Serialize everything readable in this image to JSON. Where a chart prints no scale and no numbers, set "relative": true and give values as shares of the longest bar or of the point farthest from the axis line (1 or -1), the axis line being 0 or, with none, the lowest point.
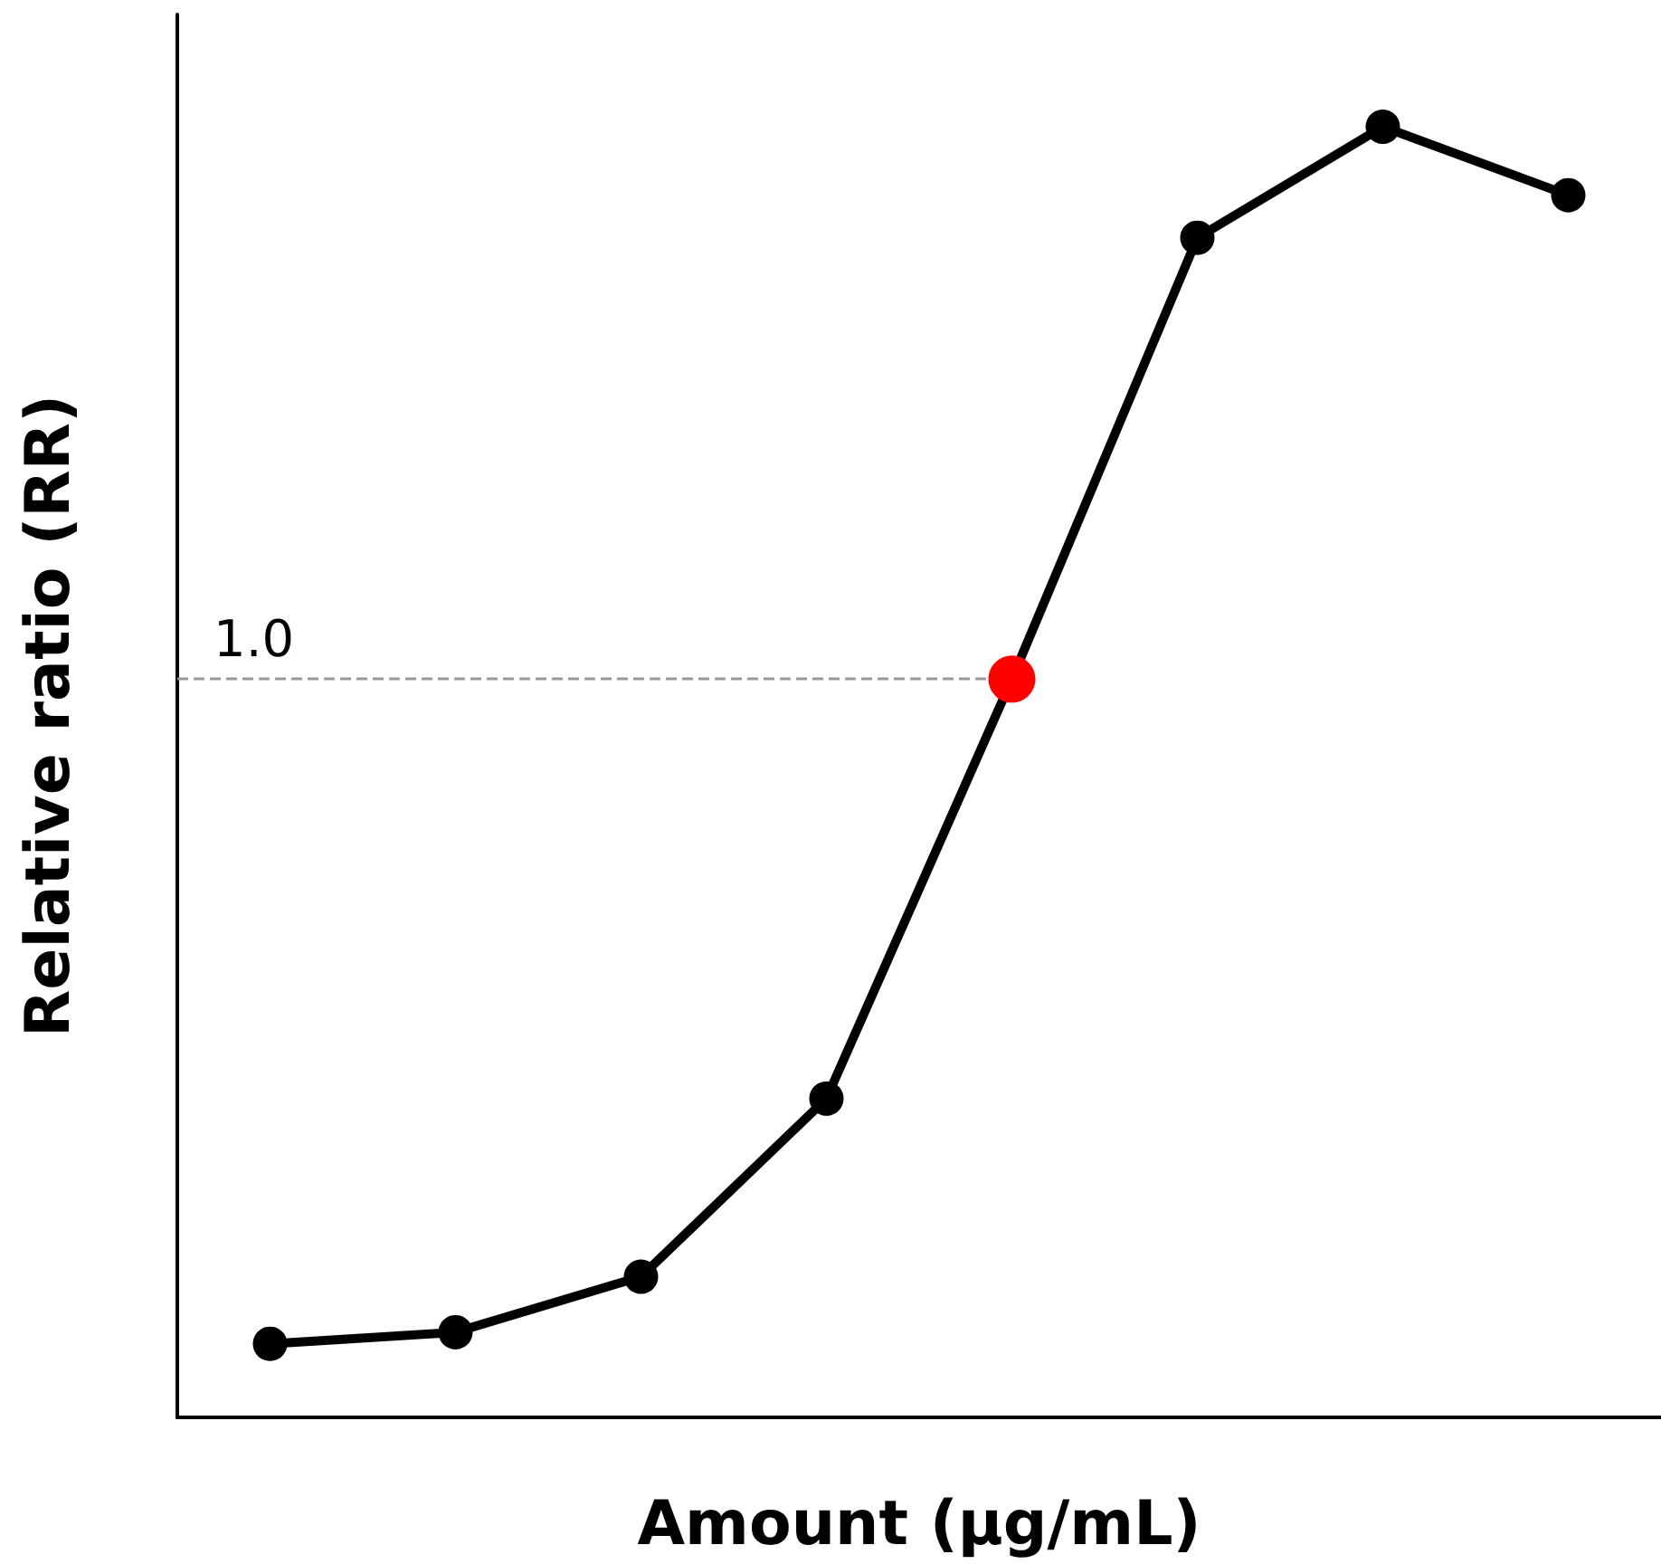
{
  "chart_data": {
    "type": "line",
    "relative": true,
    "xlabel": "Amount (µg/mL)",
    "ylabel": "Relative ratio (RR)",
    "categories": [
      null,
      null,
      null,
      null,
      null,
      null,
      null,
      null
    ],
    "series": [
      {
        "color": "#000000",
        "colors": [
          "#000000",
          "#000000",
          "#000000",
          "#000000",
          "#ff0000",
          "#000000",
          "#000000",
          "#000000"
        ],
        "values": [
          0.057,
          0.066,
          0.109,
          0.247,
          0.572,
          0.914,
          1,
          0.947
        ]
      }
    ],
    "ref_lines": [
      {
        "axis": "y",
        "value": 0.572,
        "color": "#999999",
        "line_style": "dashed"
      }
    ],
    "annotations": [
      "1.0"
    ],
    "marker": "circle",
    "line_style": "solid",
    "grid": false
  }
}
